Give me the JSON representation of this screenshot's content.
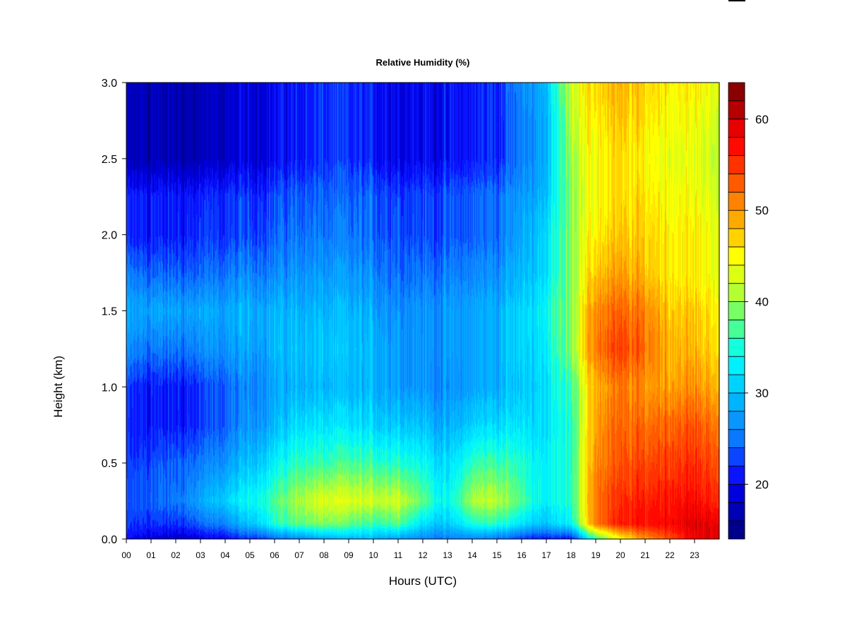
{
  "chart_data": {
    "type": "heatmap",
    "title": "Relative Humidity (%)",
    "xlabel": "Hours (UTC)",
    "ylabel": "Height (km)",
    "x_range": [
      0,
      24
    ],
    "y_range": [
      0,
      3
    ],
    "x_tick_labels": [
      "00",
      "01",
      "02",
      "03",
      "04",
      "05",
      "06",
      "07",
      "08",
      "09",
      "10",
      "11",
      "12",
      "13",
      "14",
      "15",
      "16",
      "17",
      "18",
      "19",
      "20",
      "21",
      "22",
      "23"
    ],
    "y_tick_labels": [
      "0.0",
      "0.5",
      "1.0",
      "1.5",
      "2.0",
      "2.5",
      "3.0"
    ],
    "y_ticks": [
      0,
      0.5,
      1.0,
      1.5,
      2.0,
      2.5,
      3.0
    ],
    "colorbar": {
      "range": [
        14,
        64
      ],
      "step": 2,
      "tick_values": [
        20,
        30,
        40,
        50,
        60
      ],
      "tick_labels": [
        "20",
        "30",
        "40",
        "50",
        "60"
      ],
      "colors": [
        "#00008b",
        "#0000b4",
        "#0000dc",
        "#0a14ff",
        "#0a46ff",
        "#0a78ff",
        "#0a96ff",
        "#00b4ff",
        "#00d2ff",
        "#00f0ff",
        "#14ffdc",
        "#46ff96",
        "#78ff64",
        "#b4ff32",
        "#dcff14",
        "#ffff00",
        "#ffd200",
        "#ffaa00",
        "#ff8200",
        "#ff5a00",
        "#ff3200",
        "#ff0a00",
        "#e60000",
        "#b40000",
        "#8b0000"
      ]
    },
    "grid": false,
    "value_description": "Estimated relative humidity (%) field, hours 0–24 vs height 0–3 km",
    "hours": [
      0,
      1,
      2,
      3,
      4,
      5,
      6,
      7,
      8,
      9,
      10,
      11,
      12,
      13,
      14,
      15,
      16,
      17,
      18,
      19,
      20,
      21,
      22,
      23,
      24
    ],
    "heights_km": [
      0.0,
      0.1,
      0.25,
      0.5,
      0.75,
      1.0,
      1.25,
      1.5,
      1.75,
      2.0,
      2.25,
      2.5,
      2.75,
      3.0
    ],
    "values": [
      [
        20,
        19,
        18,
        19,
        20,
        22,
        24,
        26,
        28,
        29,
        29,
        28,
        26,
        25,
        26,
        25,
        22,
        21,
        21,
        36,
        44,
        50,
        54,
        58,
        60
      ],
      [
        22,
        22,
        22,
        24,
        26,
        30,
        35,
        38,
        39,
        38,
        36,
        38,
        32,
        30,
        35,
        36,
        32,
        30,
        34,
        52,
        56,
        57,
        58,
        59,
        59
      ],
      [
        23,
        24,
        25,
        28,
        31,
        34,
        37,
        41,
        43,
        43,
        42,
        43,
        38,
        33,
        41,
        42,
        37,
        33,
        36,
        52,
        55,
        56,
        57,
        57,
        56
      ],
      [
        22,
        23,
        24,
        25,
        27,
        30,
        33,
        36,
        36,
        37,
        36,
        36,
        34,
        31,
        36,
        37,
        35,
        33,
        36,
        51,
        53,
        54,
        55,
        55,
        54
      ],
      [
        21,
        21,
        21,
        22,
        24,
        27,
        29,
        32,
        32,
        32,
        31,
        31,
        30,
        28,
        31,
        32,
        32,
        32,
        36,
        50,
        52,
        52,
        53,
        53,
        52
      ],
      [
        22,
        21,
        21,
        22,
        24,
        26,
        28,
        29,
        29,
        29,
        29,
        28,
        27,
        26,
        28,
        29,
        30,
        32,
        37,
        49,
        51,
        50,
        50,
        50,
        49
      ],
      [
        26,
        25,
        25,
        26,
        27,
        28,
        29,
        30,
        30,
        30,
        29,
        28,
        27,
        27,
        28,
        29,
        31,
        33,
        40,
        52,
        54,
        52,
        49,
        48,
        47
      ],
      [
        28,
        28,
        28,
        28,
        28,
        29,
        29,
        29,
        29,
        29,
        28,
        27,
        27,
        27,
        28,
        29,
        31,
        34,
        40,
        51,
        52,
        51,
        48,
        47,
        46
      ],
      [
        25,
        24,
        24,
        24,
        25,
        26,
        26,
        27,
        27,
        27,
        26,
        25,
        25,
        25,
        26,
        27,
        29,
        32,
        40,
        48,
        49,
        48,
        46,
        45,
        44
      ],
      [
        21,
        21,
        21,
        22,
        22,
        23,
        24,
        25,
        25,
        25,
        24,
        24,
        23,
        23,
        24,
        25,
        28,
        32,
        40,
        46,
        47,
        47,
        46,
        45,
        44
      ],
      [
        21,
        21,
        21,
        21,
        22,
        22,
        23,
        24,
        24,
        24,
        24,
        23,
        23,
        23,
        24,
        25,
        27,
        30,
        40,
        45,
        46,
        46,
        45,
        44,
        43
      ],
      [
        17,
        17,
        17,
        17,
        18,
        19,
        20,
        21,
        22,
        22,
        21,
        20,
        20,
        20,
        21,
        22,
        25,
        29,
        41,
        45,
        46,
        45,
        44,
        43,
        42
      ],
      [
        17,
        17,
        17,
        17,
        18,
        19,
        20,
        21,
        22,
        22,
        21,
        20,
        20,
        20,
        21,
        22,
        25,
        29,
        42,
        46,
        47,
        46,
        45,
        44,
        43
      ],
      [
        17,
        17,
        17,
        17,
        18,
        19,
        20,
        21,
        22,
        22,
        21,
        20,
        20,
        20,
        21,
        22,
        26,
        30,
        43,
        47,
        48,
        47,
        46,
        45,
        44
      ]
    ]
  }
}
